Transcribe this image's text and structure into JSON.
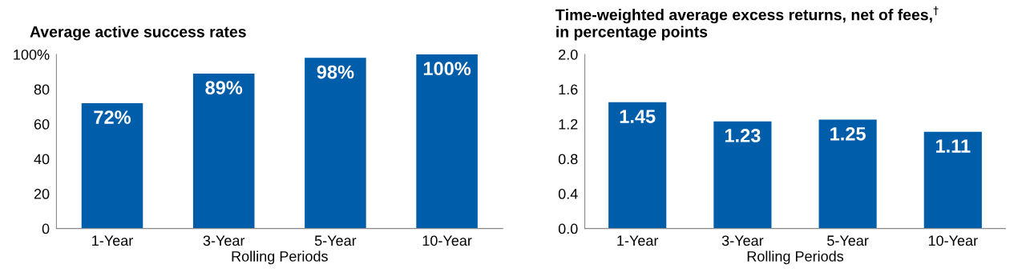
{
  "chart_data": [
    {
      "type": "bar",
      "title": "Average active success rates",
      "xlabel": "Rolling Periods",
      "categories": [
        "1-Year",
        "3-Year",
        "5-Year",
        "10-Year"
      ],
      "color": "#005daa",
      "values": [
        72,
        89,
        98,
        100
      ],
      "value_labels": [
        "72%",
        "89%",
        "98%",
        "100%"
      ],
      "ylim": [
        0,
        100
      ],
      "yticks": [
        0,
        20,
        40,
        60,
        80,
        {
          "value": 100,
          "label": "100%"
        }
      ],
      "grid": false
    },
    {
      "type": "bar",
      "title": "Time-weighted average excess returns, net of fees,$^{†}$\nin percentage points",
      "xlabel": "Rolling Periods",
      "categories": [
        "1-Year",
        "3-Year",
        "5-Year",
        "10-Year"
      ],
      "color": "#005daa",
      "values": [
        1.45,
        1.23,
        1.25,
        1.11
      ],
      "data_labels": true,
      "ylim": [
        0,
        2.0
      ],
      "yticks": [
        {
          "value": 0,
          "label": "0.0"
        },
        {
          "value": 0.4,
          "label": "0.4"
        },
        {
          "value": 0.8,
          "label": "0.8"
        },
        {
          "value": 1.2,
          "label": "1.2"
        },
        {
          "value": 1.6,
          "label": "1.6"
        },
        {
          "value": 2.0,
          "label": "2.0"
        }
      ],
      "grid": false
    }
  ]
}
